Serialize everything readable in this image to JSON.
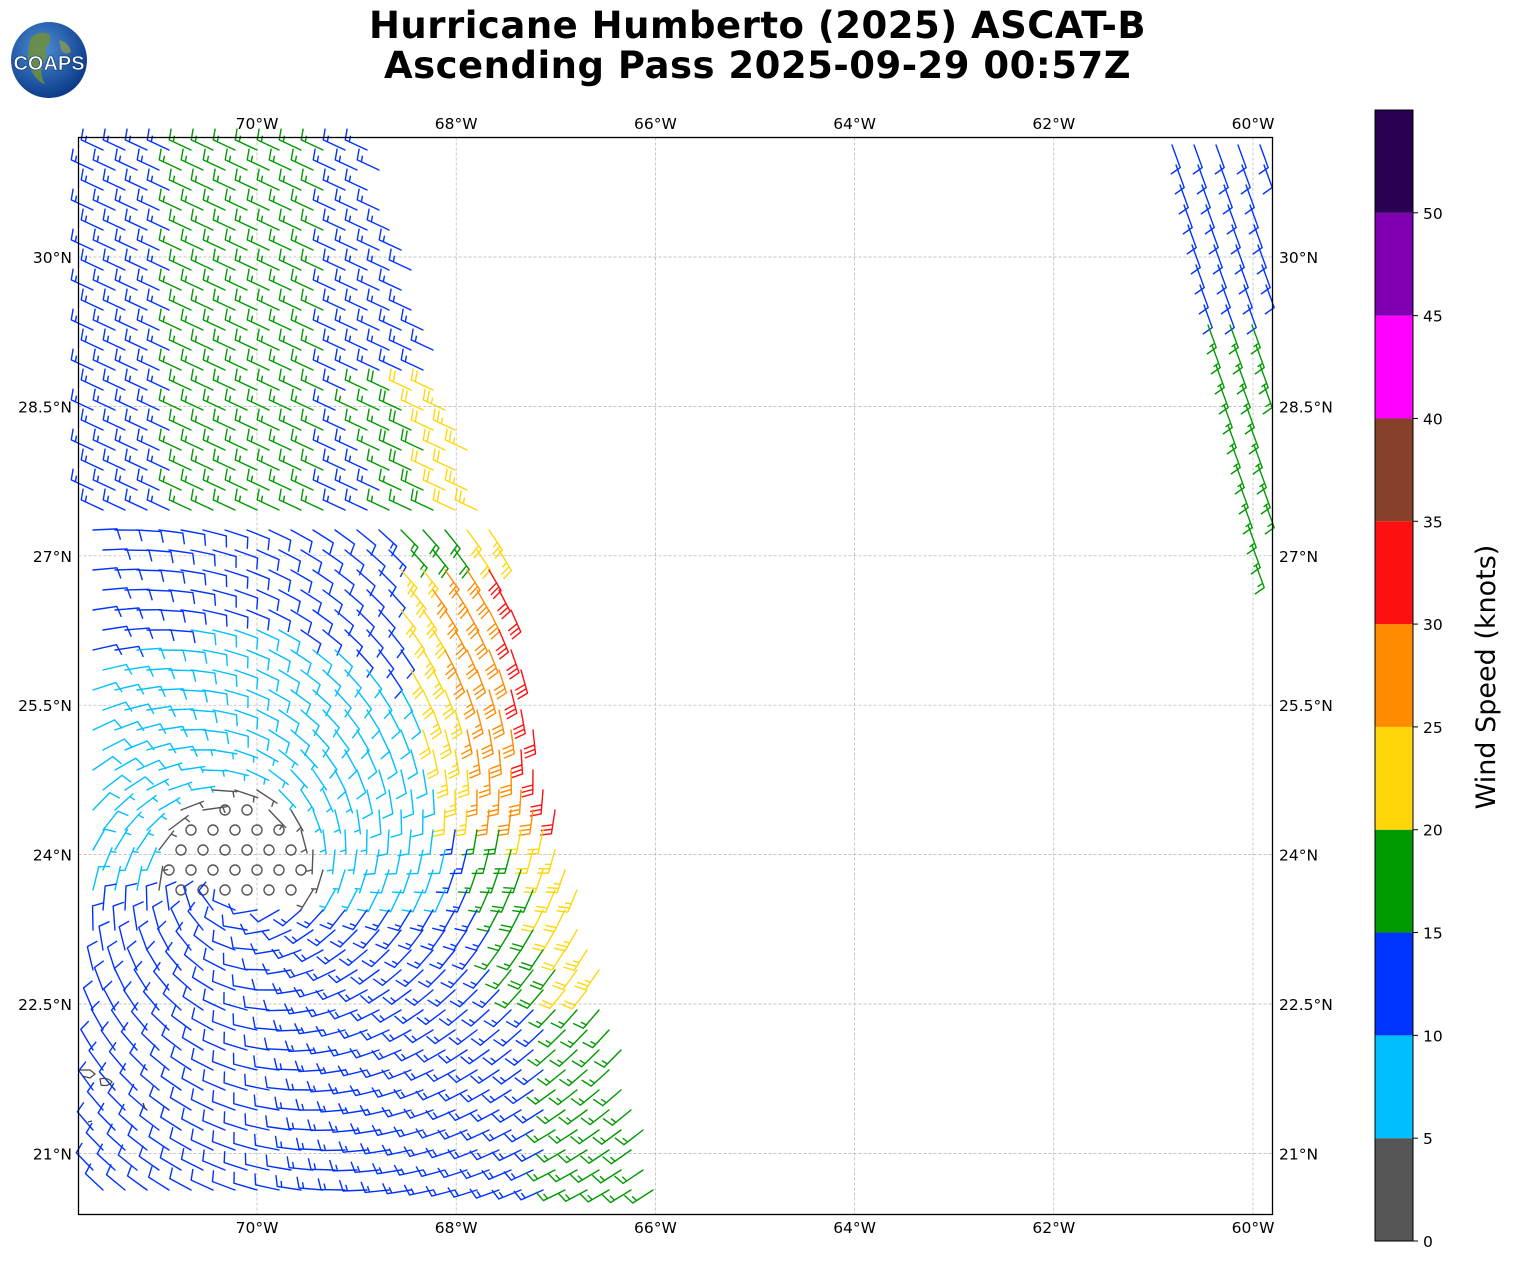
{
  "header": {
    "title_line1": "Hurricane Humberto (2025) ASCAT-B",
    "title_line2": "Ascending Pass 2025-09-29 00:57Z"
  },
  "logo": {
    "text": "COAPS",
    "icon": "globe-logo-icon"
  },
  "colors": {
    "gray": "#555555",
    "cyan": "#00bfff",
    "blue": "#0033ff",
    "green": "#009900",
    "yellow": "#ffd60a",
    "orange": "#ff8c00",
    "red": "#ff1010",
    "brown": "#87402a",
    "magenta": "#ff00ff",
    "purple": "#7f00b2",
    "darkpurple": "#2a0055"
  },
  "chart_data": {
    "type": "wind-barb map",
    "title": "Hurricane Humberto (2025) ASCAT-B Ascending Pass 2025-09-29 00:57Z",
    "lon_ticks": [
      "70°W",
      "68°W",
      "66°W",
      "64°W",
      "62°W",
      "60°W"
    ],
    "lon_values": [
      -70,
      -68,
      -66,
      -64,
      -62,
      -60
    ],
    "lat_ticks": [
      "30°N",
      "28.5°N",
      "27°N",
      "25.5°N",
      "24°N",
      "22.5°N",
      "21°N"
    ],
    "lat_values": [
      30,
      28.5,
      27,
      25.5,
      24,
      22.5,
      21
    ],
    "lon_range": [
      -71.8,
      -59.8
    ],
    "lat_range": [
      20.4,
      31.2
    ],
    "grid": true,
    "colorbar": {
      "label": "Wind Speed (knots)",
      "ticks": [
        "0",
        "5",
        "10",
        "15",
        "20",
        "25",
        "30",
        "35",
        "40",
        "45",
        "50"
      ],
      "bins": [
        {
          "min": 0,
          "max": 5,
          "color": "#555555"
        },
        {
          "min": 5,
          "max": 10,
          "color": "#00bfff"
        },
        {
          "min": 10,
          "max": 15,
          "color": "#0033ff"
        },
        {
          "min": 15,
          "max": 20,
          "color": "#009900"
        },
        {
          "min": 20,
          "max": 25,
          "color": "#ffd60a"
        },
        {
          "min": 25,
          "max": 30,
          "color": "#ff8c00"
        },
        {
          "min": 30,
          "max": 35,
          "color": "#ff1010"
        },
        {
          "min": 35,
          "max": 40,
          "color": "#87402a"
        },
        {
          "min": 40,
          "max": 45,
          "color": "#ff00ff"
        },
        {
          "min": 45,
          "max": 50,
          "color": "#7f00b2"
        },
        {
          "min": 50,
          "max": 55,
          "color": "#2a0055"
        }
      ]
    },
    "storm_center_approx": {
      "lon": -70.2,
      "lat": 23.8
    },
    "max_wind_knots_approx": 32,
    "swaths": [
      {
        "name": "western swath",
        "lon_min": -71.8,
        "lon_max": -66.2
      },
      {
        "name": "eastern swath",
        "lon_min": -60.9,
        "lon_max": -59.8
      }
    ]
  }
}
